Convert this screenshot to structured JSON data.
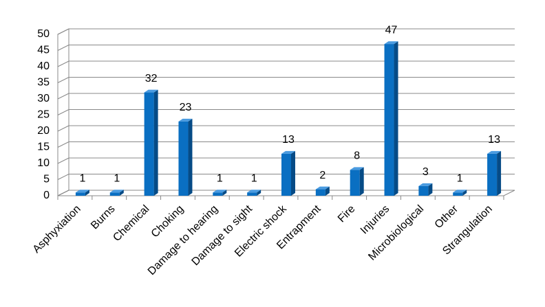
{
  "chart_data": {
    "type": "bar",
    "categories": [
      "Asphyxiation",
      "Burns",
      "Chemical",
      "Choking",
      "Damage to hearing",
      "Damage to sight",
      "Electric shock",
      "Entrapment",
      "Fire",
      "Injuries",
      "Microbiological",
      "Other",
      "Strangulation"
    ],
    "values": [
      1,
      1,
      32,
      23,
      1,
      1,
      13,
      2,
      8,
      47,
      3,
      1,
      13
    ],
    "color": "#0a6fc2",
    "ylim": [
      0,
      50
    ],
    "yticks": [
      0,
      5,
      10,
      15,
      20,
      25,
      30,
      35,
      40,
      45,
      50
    ],
    "grid": true
  }
}
